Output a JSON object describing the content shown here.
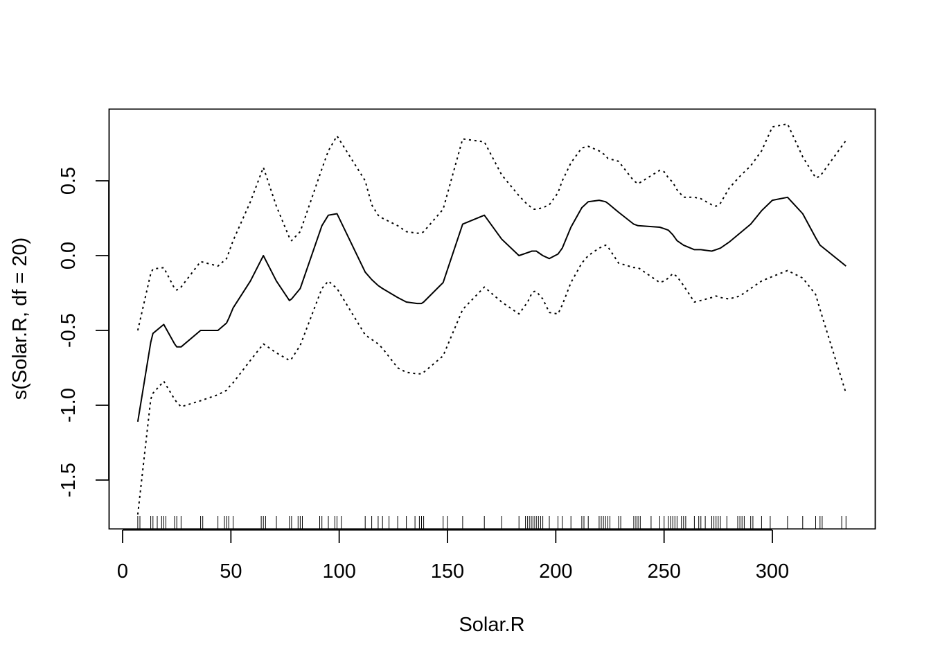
{
  "chart_data": {
    "type": "line",
    "xlabel": "Solar.R",
    "ylabel": "s(Solar.R, df = 20)",
    "xlim": [
      0,
      340
    ],
    "ylim": [
      -1.8,
      1.0
    ],
    "x_ticks": [
      0,
      50,
      100,
      150,
      200,
      250,
      300
    ],
    "y_ticks": [
      -1.5,
      -1.0,
      -0.5,
      0.0,
      0.5
    ],
    "x_tick_labels": [
      "0",
      "50",
      "100",
      "150",
      "200",
      "250",
      "300"
    ],
    "y_tick_labels": [
      "-1.5",
      "-1.0",
      "-0.5",
      "0.0",
      "0.5"
    ],
    "grid": false,
    "legend": "none",
    "series": [
      {
        "style": "solid",
        "x": [
          7,
          13,
          14,
          19,
          24,
          25,
          27,
          36,
          44,
          48,
          49,
          51,
          59,
          65,
          71,
          77,
          78,
          82,
          92,
          95,
          99,
          112,
          115,
          118,
          120,
          127,
          131,
          136,
          137,
          138,
          139,
          148,
          157,
          167,
          175,
          183,
          187,
          189,
          190,
          191,
          194,
          197,
          201,
          203,
          207,
          212,
          215,
          220,
          223,
          224,
          229,
          236,
          238,
          248,
          250,
          252,
          254,
          256,
          259,
          264,
          267,
          272,
          274,
          276,
          280,
          285,
          290,
          295,
          300,
          307,
          314,
          320,
          322,
          334
        ],
        "y": [
          -1.11,
          -0.58,
          -0.52,
          -0.46,
          -0.59,
          -0.61,
          -0.61,
          -0.5,
          -0.5,
          -0.45,
          -0.42,
          -0.35,
          -0.17,
          0.0,
          -0.17,
          -0.3,
          -0.29,
          -0.22,
          0.2,
          0.27,
          0.28,
          -0.11,
          -0.16,
          -0.2,
          -0.22,
          -0.28,
          -0.31,
          -0.32,
          -0.32,
          -0.32,
          -0.31,
          -0.18,
          0.21,
          0.27,
          0.11,
          0.0,
          0.02,
          0.03,
          0.03,
          0.03,
          0.0,
          -0.02,
          0.01,
          0.05,
          0.19,
          0.32,
          0.36,
          0.37,
          0.36,
          0.35,
          0.29,
          0.21,
          0.2,
          0.19,
          0.18,
          0.17,
          0.14,
          0.1,
          0.07,
          0.04,
          0.04,
          0.03,
          0.04,
          0.05,
          0.09,
          0.15,
          0.21,
          0.3,
          0.37,
          0.39,
          0.28,
          0.12,
          0.07,
          -0.07
        ]
      },
      {
        "style": "dotted",
        "x": [
          7,
          13,
          14,
          19,
          24,
          25,
          27,
          36,
          44,
          48,
          49,
          51,
          59,
          65,
          71,
          77,
          78,
          82,
          92,
          95,
          99,
          112,
          115,
          118,
          120,
          127,
          131,
          136,
          137,
          138,
          139,
          148,
          157,
          167,
          175,
          183,
          187,
          189,
          190,
          191,
          194,
          197,
          201,
          203,
          207,
          212,
          215,
          220,
          223,
          224,
          229,
          236,
          238,
          248,
          250,
          252,
          254,
          256,
          259,
          264,
          267,
          272,
          274,
          276,
          280,
          285,
          290,
          295,
          300,
          307,
          314,
          320,
          322,
          334
        ],
        "y": [
          -0.5,
          -0.12,
          -0.09,
          -0.08,
          -0.22,
          -0.23,
          -0.21,
          -0.04,
          -0.07,
          -0.02,
          0.02,
          0.1,
          0.36,
          0.59,
          0.33,
          0.12,
          0.1,
          0.16,
          0.58,
          0.7,
          0.8,
          0.5,
          0.34,
          0.27,
          0.25,
          0.2,
          0.16,
          0.15,
          0.15,
          0.15,
          0.16,
          0.31,
          0.78,
          0.76,
          0.54,
          0.4,
          0.34,
          0.32,
          0.31,
          0.31,
          0.32,
          0.34,
          0.42,
          0.5,
          0.62,
          0.72,
          0.73,
          0.7,
          0.67,
          0.65,
          0.63,
          0.5,
          0.48,
          0.57,
          0.56,
          0.52,
          0.49,
          0.44,
          0.39,
          0.39,
          0.38,
          0.34,
          0.33,
          0.35,
          0.45,
          0.53,
          0.6,
          0.7,
          0.86,
          0.88,
          0.66,
          0.52,
          0.53,
          0.77
        ]
      },
      {
        "style": "dotted",
        "x": [
          7,
          13,
          14,
          19,
          24,
          25,
          27,
          36,
          44,
          48,
          49,
          51,
          59,
          65,
          71,
          77,
          78,
          82,
          92,
          95,
          99,
          112,
          115,
          118,
          120,
          127,
          131,
          136,
          137,
          138,
          139,
          148,
          157,
          167,
          175,
          183,
          187,
          189,
          190,
          191,
          194,
          197,
          201,
          203,
          207,
          212,
          215,
          220,
          223,
          224,
          229,
          236,
          238,
          248,
          250,
          252,
          254,
          256,
          259,
          264,
          267,
          272,
          274,
          276,
          280,
          285,
          290,
          295,
          300,
          307,
          314,
          320,
          322,
          334
        ],
        "y": [
          -1.73,
          -0.96,
          -0.92,
          -0.84,
          -0.96,
          -0.98,
          -1.01,
          -0.97,
          -0.93,
          -0.9,
          -0.88,
          -0.85,
          -0.7,
          -0.59,
          -0.65,
          -0.7,
          -0.69,
          -0.6,
          -0.22,
          -0.17,
          -0.22,
          -0.53,
          -0.56,
          -0.59,
          -0.62,
          -0.75,
          -0.78,
          -0.79,
          -0.79,
          -0.79,
          -0.78,
          -0.67,
          -0.36,
          -0.21,
          -0.31,
          -0.39,
          -0.31,
          -0.25,
          -0.24,
          -0.24,
          -0.29,
          -0.38,
          -0.39,
          -0.33,
          -0.18,
          -0.05,
          0.0,
          0.05,
          0.07,
          0.06,
          -0.05,
          -0.08,
          -0.08,
          -0.18,
          -0.17,
          -0.15,
          -0.12,
          -0.14,
          -0.2,
          -0.31,
          -0.3,
          -0.28,
          -0.27,
          -0.28,
          -0.29,
          -0.27,
          -0.22,
          -0.17,
          -0.14,
          -0.1,
          -0.15,
          -0.26,
          -0.36,
          -0.92
        ]
      }
    ],
    "rug": [
      7,
      8,
      13,
      14,
      16,
      18,
      19,
      20,
      24,
      25,
      27,
      36,
      37,
      44,
      47,
      48,
      49,
      51,
      64,
      65,
      66,
      71,
      77,
      78,
      81,
      82,
      83,
      91,
      92,
      95,
      98,
      99,
      101,
      112,
      115,
      118,
      120,
      123,
      127,
      131,
      135,
      137,
      138,
      139,
      148,
      150,
      157,
      167,
      175,
      183,
      186,
      187,
      188,
      189,
      190,
      191,
      192,
      193,
      194,
      197,
      201,
      203,
      207,
      212,
      213,
      215,
      220,
      221,
      222,
      223,
      224,
      225,
      229,
      230,
      236,
      237,
      238,
      239,
      244,
      248,
      250,
      252,
      253,
      254,
      255,
      256,
      258,
      259,
      260,
      264,
      266,
      267,
      269,
      272,
      273,
      274,
      275,
      276,
      279,
      284,
      285,
      286,
      287,
      290,
      291,
      295,
      299,
      307,
      314,
      320,
      322,
      323,
      332,
      334
    ]
  }
}
